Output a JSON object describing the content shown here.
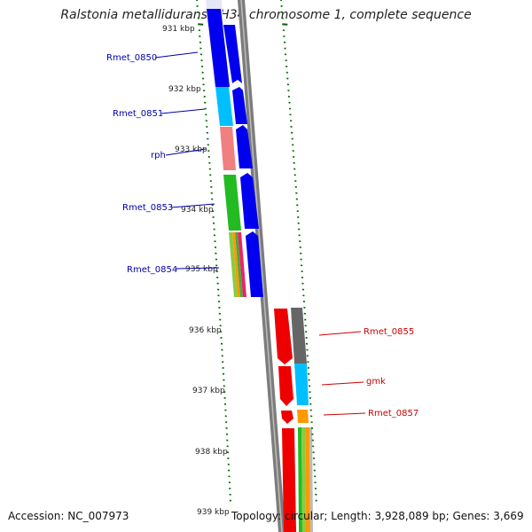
{
  "title": "Ralstonia metallidurans CH34 chromosome 1, complete sequence",
  "footer": {
    "accession": "Accession: NC_007973",
    "summary": "Topology: circular; Length: 3,928,089 bp; Genes: 3,669"
  },
  "colors": {
    "backbone": "#808080",
    "tick": "#006400",
    "forward_label": "#0000aa",
    "reverse_label": "#cc0000"
  },
  "scale_labels": [
    "931 kbp",
    "932 kbp",
    "933 kbp",
    "934 kbp",
    "935 kbp",
    "936 kbp",
    "937 kbp",
    "938 kbp",
    "939 kbp"
  ],
  "genes": {
    "forward": [
      "Rmet_0850",
      "Rmet_0851",
      "rph",
      "Rmet_0853",
      "Rmet_0854"
    ],
    "reverse": [
      "Rmet_0855",
      "gmk",
      "Rmet_0857"
    ]
  }
}
